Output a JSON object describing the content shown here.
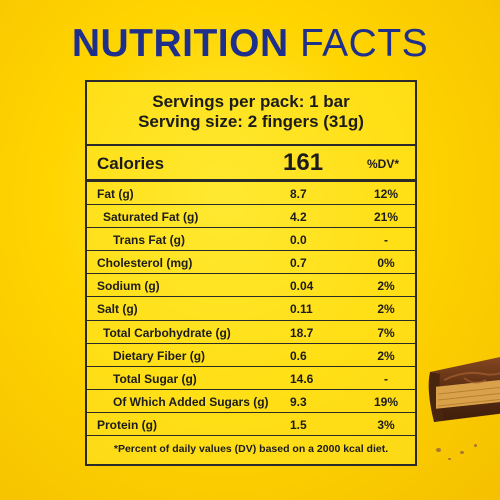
{
  "title": {
    "word1": "NUTRITION",
    "word2": "FACTS"
  },
  "servings": {
    "per_pack": "Servings per pack: 1 bar",
    "size": "Serving size: 2 fingers (31g)"
  },
  "calories": {
    "label": "Calories",
    "value": "161",
    "dv_header": "%DV*"
  },
  "nutrients": [
    {
      "label": "Fat (g)",
      "amount": "8.7",
      "dv": "12%",
      "indent": 0
    },
    {
      "label": "Saturated Fat (g)",
      "amount": "4.2",
      "dv": "21%",
      "indent": 1
    },
    {
      "label": "Trans Fat (g)",
      "amount": "0.0",
      "dv": "-",
      "indent": 2
    },
    {
      "label": "Cholesterol (mg)",
      "amount": "0.7",
      "dv": "0%",
      "indent": 0
    },
    {
      "label": "Sodium (g)",
      "amount": "0.04",
      "dv": "2%",
      "indent": 0
    },
    {
      "label": "Salt (g)",
      "amount": "0.11",
      "dv": "2%",
      "indent": 0
    },
    {
      "label": "Total Carbohydrate (g)",
      "amount": "18.7",
      "dv": "7%",
      "indent": 1
    },
    {
      "label": "Dietary Fiber (g)",
      "amount": "0.6",
      "dv": "2%",
      "indent": 2
    },
    {
      "label": "Total Sugar (g)",
      "amount": "14.6",
      "dv": "-",
      "indent": 2
    },
    {
      "label": "Of Which Added Sugars (g)",
      "amount": "9.3",
      "dv": "19%",
      "indent": 2
    },
    {
      "label": "Protein (g)",
      "amount": "1.5",
      "dv": "3%",
      "indent": 0
    }
  ],
  "footnote": "*Percent of daily values (DV) based on a 2000 kcal diet.",
  "colors": {
    "background": "#ffd500",
    "title": "#1f2f8c",
    "text": "#1c1c1c",
    "border": "#2a2a2a",
    "chocolate": "#5a2d12",
    "wafer": "#d9a24a"
  },
  "decoration": {
    "image": "chocolate-wafer-bar"
  }
}
